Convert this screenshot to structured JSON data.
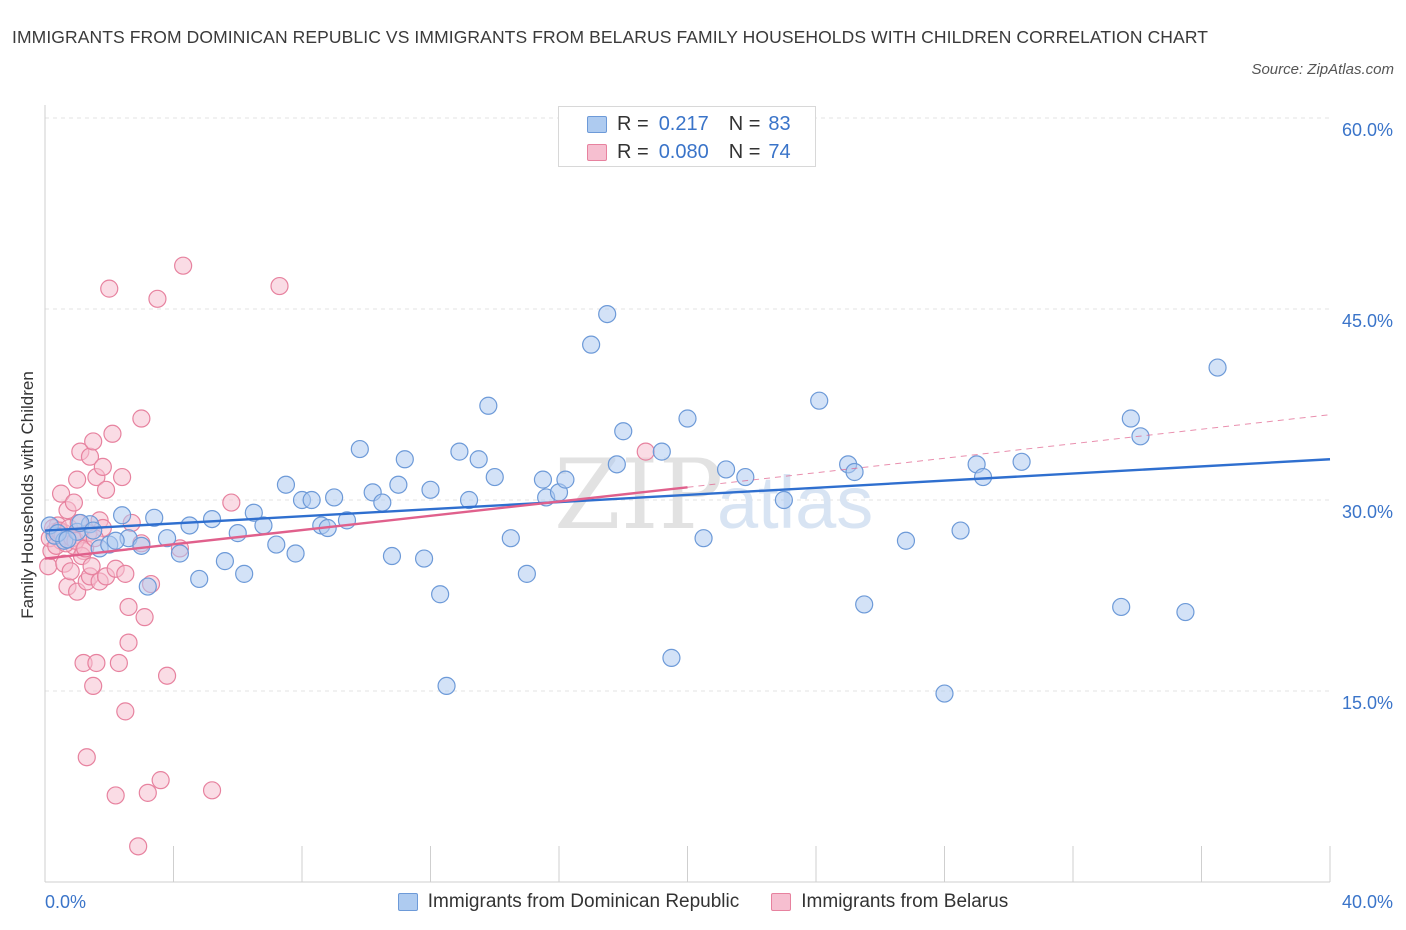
{
  "title": "IMMIGRANTS FROM DOMINICAN REPUBLIC VS IMMIGRANTS FROM BELARUS FAMILY HOUSEHOLDS WITH CHILDREN CORRELATION CHART",
  "source": "Source: ZipAtlas.com",
  "legend_top": {
    "rows": [
      {
        "r_label": "R =",
        "r_value": "0.217",
        "n_label": "N =",
        "n_value": "83"
      },
      {
        "r_label": "R =",
        "r_value": "0.080",
        "n_label": "N =",
        "n_value": "74"
      }
    ]
  },
  "watermark": {
    "zip": "ZIP",
    "atlas": "atlas"
  },
  "colors": {
    "blue_fill": "#aecbf0",
    "blue_stroke": "#6d9ad8",
    "blue_line": "#2f6fcf",
    "pink_fill": "#f6bfd0",
    "pink_stroke": "#e7829f",
    "pink_line": "#e0608c",
    "tick_label": "#3a74c9",
    "grid": "#e3e3e3"
  },
  "chart_data": {
    "type": "scatter",
    "title": "IMMIGRANTS FROM DOMINICAN REPUBLIC VS IMMIGRANTS FROM BELARUS FAMILY HOUSEHOLDS WITH CHILDREN CORRELATION CHART",
    "xlabel": "",
    "ylabel": "Family Households with Children",
    "xlim": [
      0,
      40
    ],
    "ylim": [
      0,
      60
    ],
    "x_tick_labels": [
      "0.0%",
      "40.0%"
    ],
    "y_ticks": [
      15,
      30,
      45,
      60
    ],
    "y_tick_labels": [
      "15.0%",
      "30.0%",
      "45.0%",
      "60.0%"
    ],
    "grid": true,
    "legend_position": "top-center and bottom",
    "series": [
      {
        "name": "Immigrants from Dominican Republic",
        "color": "blue",
        "trend": {
          "x": [
            0,
            40
          ],
          "y": [
            27.6,
            33.2
          ],
          "style": "solid"
        },
        "points": [
          [
            0.3,
            27.2
          ],
          [
            0.6,
            26.8
          ],
          [
            1.0,
            27.5
          ],
          [
            1.4,
            28.1
          ],
          [
            1.7,
            26.2
          ],
          [
            2.0,
            26.5
          ],
          [
            2.4,
            28.8
          ],
          [
            2.6,
            27.0
          ],
          [
            3.0,
            26.4
          ],
          [
            3.2,
            23.2
          ],
          [
            3.8,
            27.0
          ],
          [
            4.2,
            25.8
          ],
          [
            4.5,
            28.0
          ],
          [
            4.8,
            23.8
          ],
          [
            5.2,
            28.5
          ],
          [
            5.6,
            25.2
          ],
          [
            6.0,
            27.4
          ],
          [
            6.2,
            24.2
          ],
          [
            6.5,
            29.0
          ],
          [
            6.8,
            28.0
          ],
          [
            7.2,
            26.5
          ],
          [
            7.5,
            31.2
          ],
          [
            7.8,
            25.8
          ],
          [
            8.0,
            30.0
          ],
          [
            8.3,
            30.0
          ],
          [
            8.6,
            28.0
          ],
          [
            8.8,
            27.8
          ],
          [
            9.0,
            30.2
          ],
          [
            9.4,
            28.4
          ],
          [
            9.8,
            34.0
          ],
          [
            10.2,
            30.6
          ],
          [
            10.5,
            29.8
          ],
          [
            10.8,
            25.6
          ],
          [
            11.0,
            31.2
          ],
          [
            11.2,
            33.2
          ],
          [
            11.8,
            25.4
          ],
          [
            12.0,
            30.8
          ],
          [
            12.3,
            22.6
          ],
          [
            12.5,
            15.4
          ],
          [
            12.9,
            33.8
          ],
          [
            13.2,
            30.0
          ],
          [
            13.5,
            33.2
          ],
          [
            13.8,
            37.4
          ],
          [
            14.0,
            31.8
          ],
          [
            14.5,
            27.0
          ],
          [
            15.0,
            24.2
          ],
          [
            15.5,
            31.6
          ],
          [
            15.6,
            30.2
          ],
          [
            16.0,
            30.6
          ],
          [
            16.2,
            31.6
          ],
          [
            17.0,
            42.2
          ],
          [
            17.5,
            44.6
          ],
          [
            17.8,
            32.8
          ],
          [
            18.0,
            35.4
          ],
          [
            19.2,
            33.8
          ],
          [
            19.5,
            17.6
          ],
          [
            20.0,
            36.4
          ],
          [
            20.5,
            27.0
          ],
          [
            21.2,
            32.4
          ],
          [
            21.8,
            31.8
          ],
          [
            23.0,
            30.0
          ],
          [
            24.1,
            37.8
          ],
          [
            25.0,
            32.8
          ],
          [
            25.2,
            32.2
          ],
          [
            25.5,
            21.8
          ],
          [
            26.8,
            26.8
          ],
          [
            28.0,
            14.8
          ],
          [
            28.5,
            27.6
          ],
          [
            29.0,
            32.8
          ],
          [
            29.2,
            31.8
          ],
          [
            30.4,
            33.0
          ],
          [
            33.5,
            21.6
          ],
          [
            33.8,
            36.4
          ],
          [
            34.1,
            35.0
          ],
          [
            35.5,
            21.2
          ],
          [
            36.5,
            40.4
          ],
          [
            0.15,
            28.0
          ],
          [
            0.4,
            27.4
          ],
          [
            0.7,
            26.9
          ],
          [
            1.1,
            28.2
          ],
          [
            1.5,
            27.6
          ],
          [
            2.2,
            26.8
          ],
          [
            3.4,
            28.6
          ]
        ]
      },
      {
        "name": "Immigrants from Belarus",
        "color": "pink",
        "trend": {
          "x": [
            0,
            20
          ],
          "y": [
            25.4,
            31.0
          ],
          "style": "solid",
          "extension": {
            "x": [
              20,
              40
            ],
            "y": [
              31.0,
              36.7
            ],
            "style": "dashed"
          }
        },
        "points": [
          [
            0.1,
            24.8
          ],
          [
            0.2,
            26.0
          ],
          [
            0.3,
            27.5
          ],
          [
            0.4,
            28.0
          ],
          [
            0.5,
            30.5
          ],
          [
            0.5,
            26.8
          ],
          [
            0.6,
            25.0
          ],
          [
            0.6,
            27.4
          ],
          [
            0.7,
            29.2
          ],
          [
            0.7,
            23.2
          ],
          [
            0.8,
            24.4
          ],
          [
            0.9,
            29.8
          ],
          [
            0.9,
            26.4
          ],
          [
            1.0,
            22.8
          ],
          [
            1.0,
            31.6
          ],
          [
            1.1,
            33.8
          ],
          [
            1.1,
            27.2
          ],
          [
            1.2,
            26.0
          ],
          [
            1.2,
            17.2
          ],
          [
            1.3,
            23.6
          ],
          [
            1.3,
            9.8
          ],
          [
            1.4,
            33.4
          ],
          [
            1.4,
            24.0
          ],
          [
            1.5,
            34.6
          ],
          [
            1.5,
            15.4
          ],
          [
            1.6,
            31.8
          ],
          [
            1.6,
            17.2
          ],
          [
            1.7,
            23.6
          ],
          [
            1.7,
            28.4
          ],
          [
            1.8,
            32.6
          ],
          [
            1.8,
            27.8
          ],
          [
            1.9,
            30.8
          ],
          [
            1.9,
            24.0
          ],
          [
            2.0,
            46.6
          ],
          [
            2.1,
            35.2
          ],
          [
            2.2,
            6.8
          ],
          [
            2.2,
            24.6
          ],
          [
            2.3,
            17.2
          ],
          [
            2.4,
            31.8
          ],
          [
            2.5,
            24.2
          ],
          [
            2.5,
            13.4
          ],
          [
            2.6,
            21.6
          ],
          [
            2.6,
            18.8
          ],
          [
            2.7,
            28.2
          ],
          [
            2.9,
            2.8
          ],
          [
            3.0,
            26.6
          ],
          [
            3.0,
            36.4
          ],
          [
            3.1,
            20.8
          ],
          [
            3.2,
            7.0
          ],
          [
            3.3,
            23.4
          ],
          [
            3.5,
            45.8
          ],
          [
            3.6,
            8.0
          ],
          [
            3.8,
            16.2
          ],
          [
            4.2,
            26.2
          ],
          [
            4.3,
            48.4
          ],
          [
            5.2,
            7.2
          ],
          [
            5.8,
            29.8
          ],
          [
            7.3,
            46.8
          ],
          [
            18.7,
            33.8
          ],
          [
            0.15,
            27.0
          ],
          [
            0.25,
            27.8
          ],
          [
            0.35,
            26.4
          ],
          [
            0.45,
            27.6
          ],
          [
            0.55,
            27.2
          ],
          [
            0.65,
            26.6
          ],
          [
            0.75,
            27.8
          ],
          [
            0.85,
            27.0
          ],
          [
            0.95,
            26.8
          ],
          [
            1.05,
            28.2
          ],
          [
            1.15,
            25.6
          ],
          [
            1.25,
            26.2
          ],
          [
            1.35,
            27.4
          ],
          [
            1.45,
            24.8
          ],
          [
            1.55,
            27.0
          ]
        ]
      }
    ]
  },
  "legend_bottom": [
    {
      "label": "Immigrants from Dominican Republic",
      "color": "blue"
    },
    {
      "label": "Immigrants from Belarus",
      "color": "pink"
    }
  ]
}
